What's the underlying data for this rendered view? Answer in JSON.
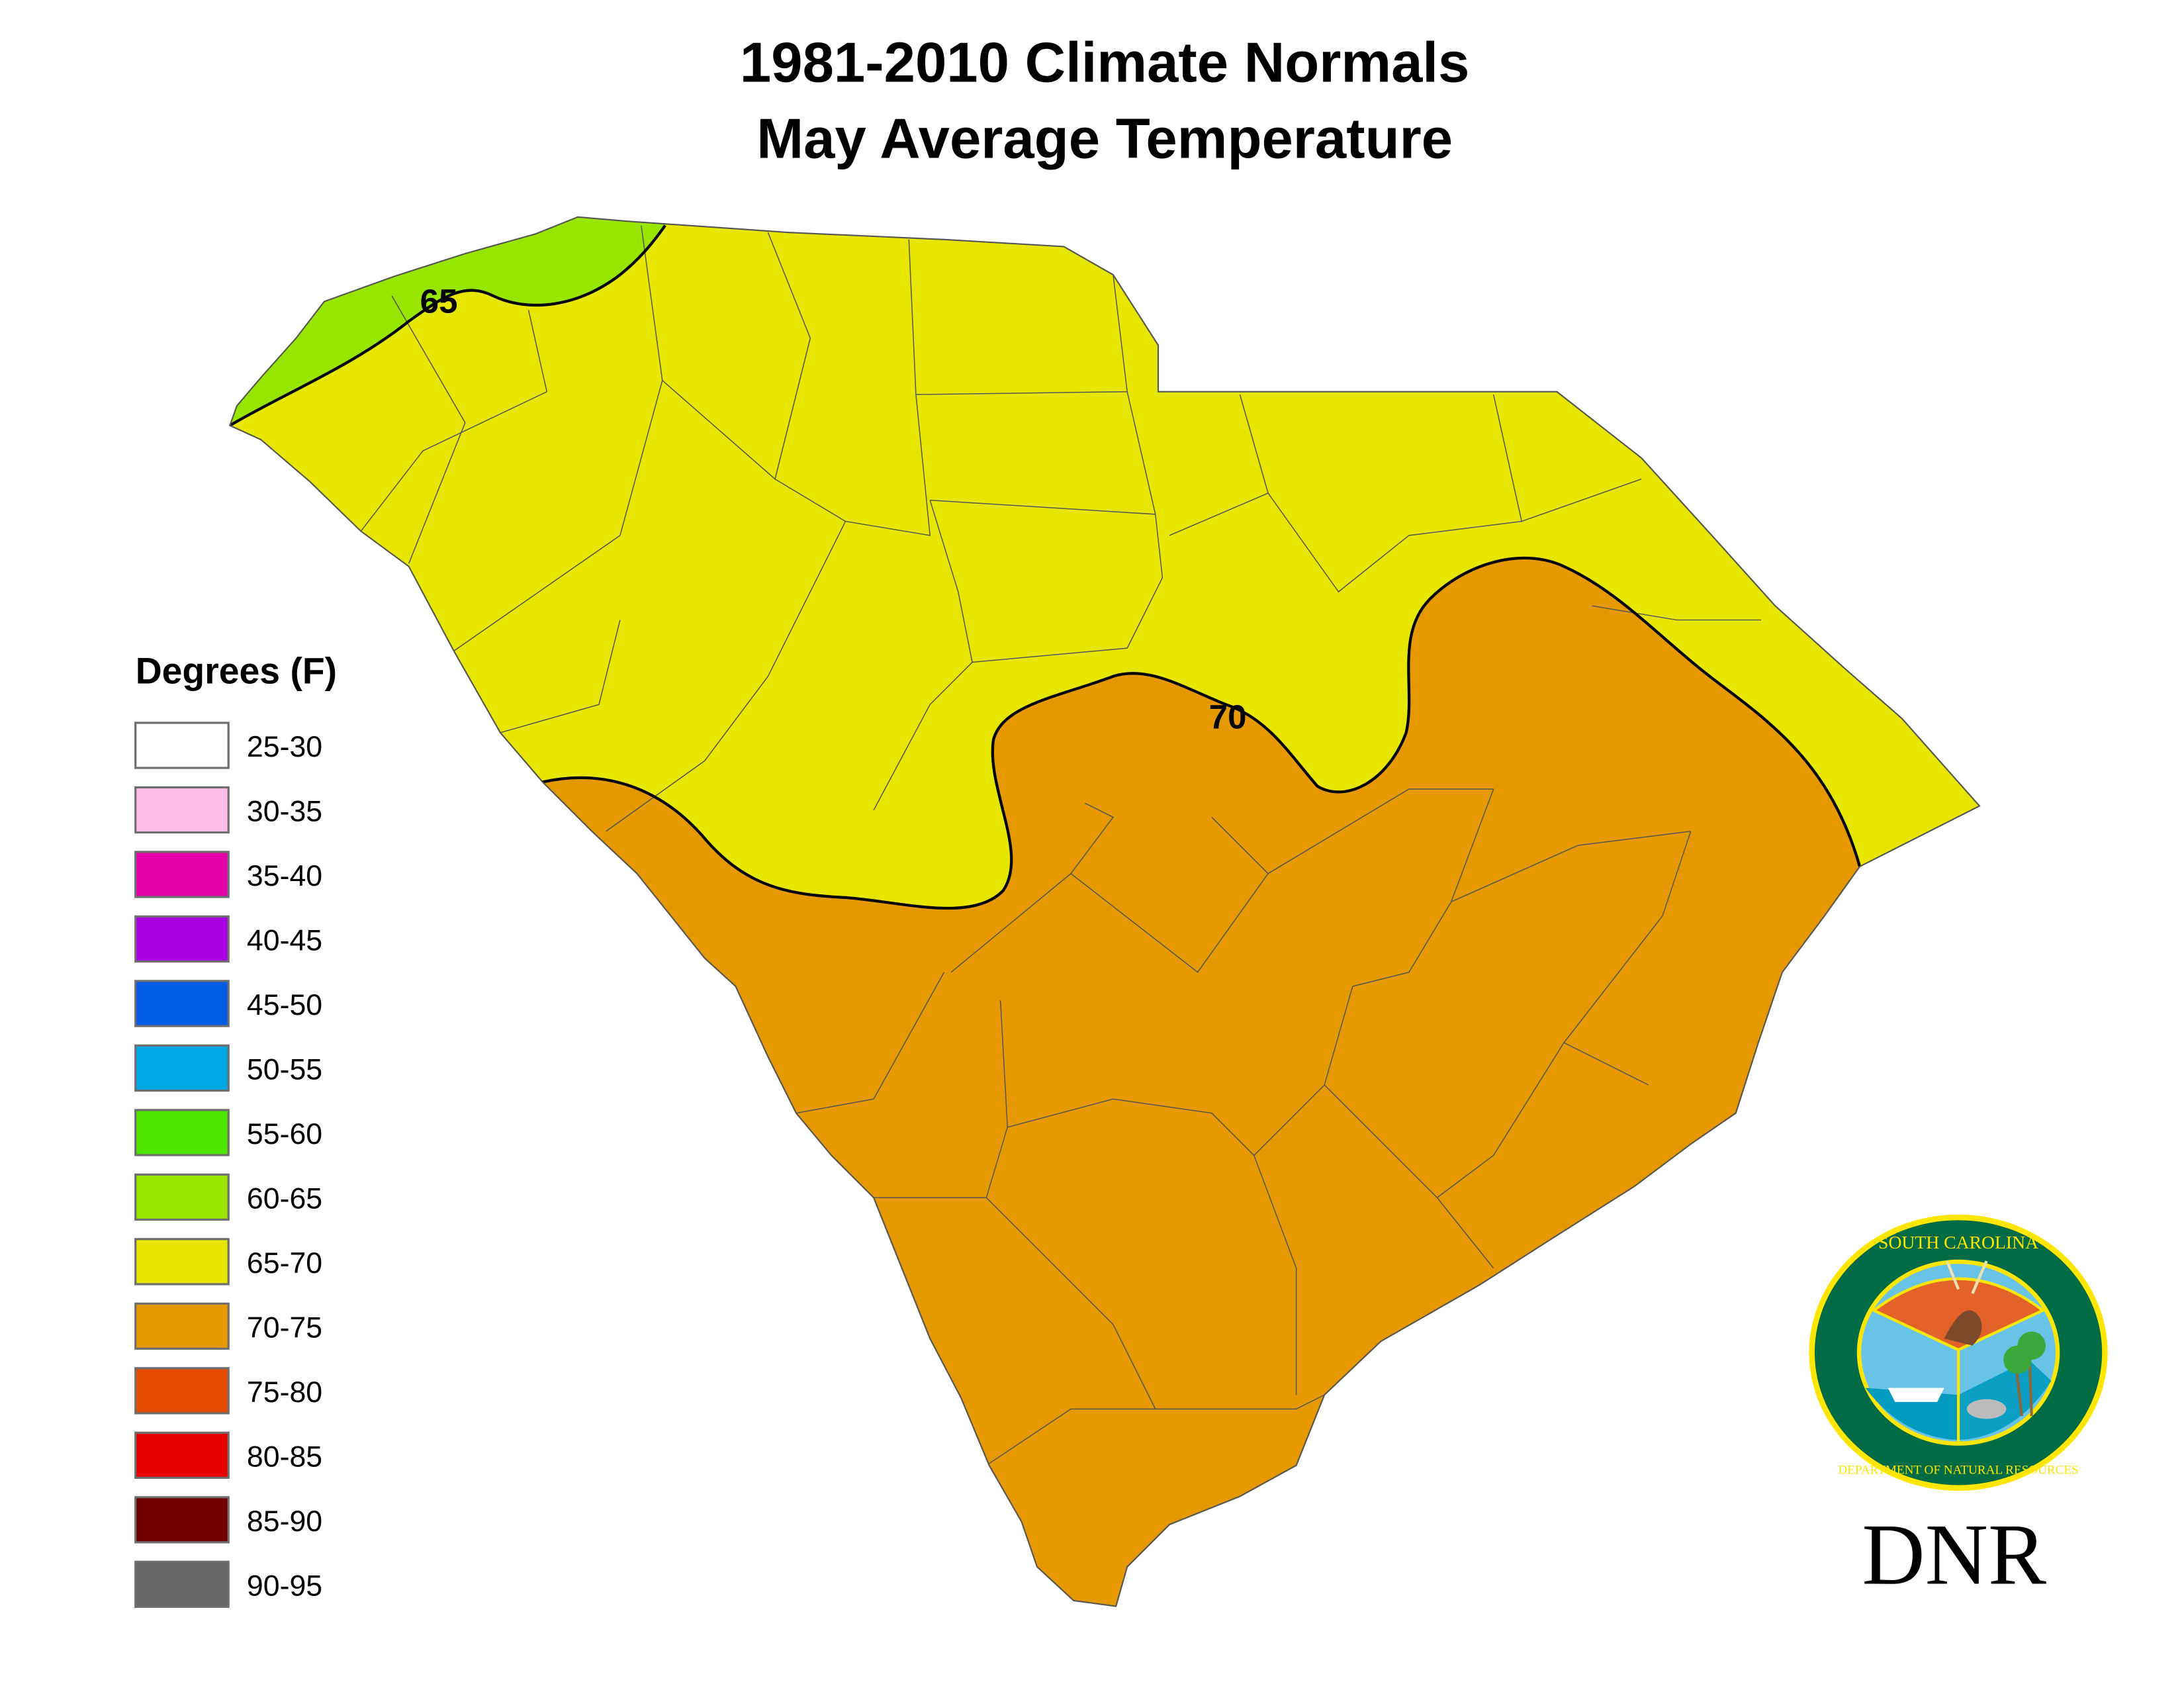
{
  "title_line1": "1981-2010 Climate Normals",
  "title_line2": "May Average Temperature",
  "legend": {
    "title": "Degrees (F)",
    "items": [
      {
        "label": "25-30",
        "color": "#ffffff"
      },
      {
        "label": "30-35",
        "color": "#ffbee6"
      },
      {
        "label": "35-40",
        "color": "#e600aa"
      },
      {
        "label": "40-45",
        "color": "#a900e6"
      },
      {
        "label": "45-50",
        "color": "#005ce6"
      },
      {
        "label": "50-55",
        "color": "#00a9e6"
      },
      {
        "label": "55-60",
        "color": "#4ce600"
      },
      {
        "label": "60-65",
        "color": "#98e600"
      },
      {
        "label": "65-70",
        "color": "#e6e600"
      },
      {
        "label": "70-75",
        "color": "#e69800"
      },
      {
        "label": "75-80",
        "color": "#e64c00"
      },
      {
        "label": "80-85",
        "color": "#e60000"
      },
      {
        "label": "85-90",
        "color": "#730000"
      },
      {
        "label": "90-95",
        "color": "#686868"
      }
    ]
  },
  "isotherms": [
    {
      "label": "65"
    },
    {
      "label": "70"
    }
  ],
  "logo": {
    "seal_text_top": "SOUTH CAROLINA",
    "seal_text_bottom": "DEPARTMENT OF NATURAL RESOURCES",
    "wordmark": "DNR"
  }
}
